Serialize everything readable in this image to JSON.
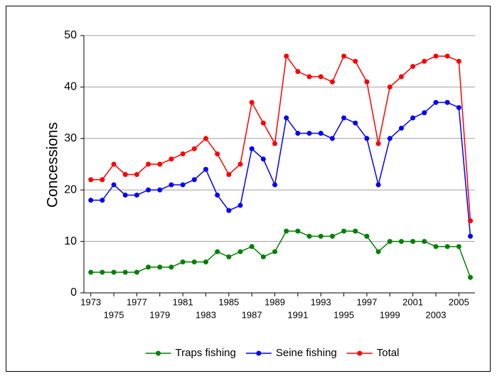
{
  "chart_data": {
    "type": "line",
    "ylabel": "Concessions",
    "x": [
      1973,
      1974,
      1975,
      1976,
      1977,
      1978,
      1979,
      1980,
      1981,
      1982,
      1983,
      1984,
      1985,
      1986,
      1987,
      1988,
      1989,
      1990,
      1991,
      1992,
      1993,
      1994,
      1995,
      1996,
      1997,
      1998,
      1999,
      2000,
      2001,
      2002,
      2003,
      2004,
      2005,
      2006
    ],
    "series": [
      {
        "name": "Traps fishing",
        "color": "#008000",
        "values": [
          4,
          4,
          4,
          4,
          4,
          5,
          5,
          5,
          6,
          6,
          6,
          8,
          7,
          8,
          9,
          7,
          8,
          12,
          12,
          11,
          11,
          11,
          12,
          12,
          11,
          8,
          10,
          10,
          10,
          10,
          9,
          9,
          9,
          3
        ]
      },
      {
        "name": "Seine fishing",
        "color": "#0000ff",
        "values": [
          18,
          18,
          21,
          19,
          19,
          20,
          20,
          21,
          21,
          22,
          24,
          19,
          16,
          17,
          28,
          26,
          21,
          34,
          31,
          31,
          31,
          30,
          34,
          33,
          30,
          21,
          30,
          32,
          34,
          35,
          37,
          37,
          36,
          11
        ]
      },
      {
        "name": "Total",
        "color": "#ff0000",
        "values": [
          22,
          22,
          25,
          23,
          23,
          25,
          25,
          26,
          27,
          28,
          30,
          27,
          23,
          25,
          37,
          33,
          29,
          46,
          43,
          42,
          42,
          41,
          46,
          45,
          41,
          29,
          40,
          42,
          44,
          45,
          46,
          46,
          45,
          14
        ]
      }
    ],
    "xlim": [
      1972.4,
      2006.4
    ],
    "xticks": [
      1973,
      1975,
      1977,
      1979,
      1981,
      1983,
      1985,
      1987,
      1989,
      1991,
      1993,
      1995,
      1997,
      1999,
      2001,
      2003,
      2005
    ],
    "ylim": [
      0,
      50
    ],
    "yticks": [
      0,
      10,
      20,
      30,
      40,
      50
    ],
    "grid": true,
    "legend": "bottom"
  }
}
